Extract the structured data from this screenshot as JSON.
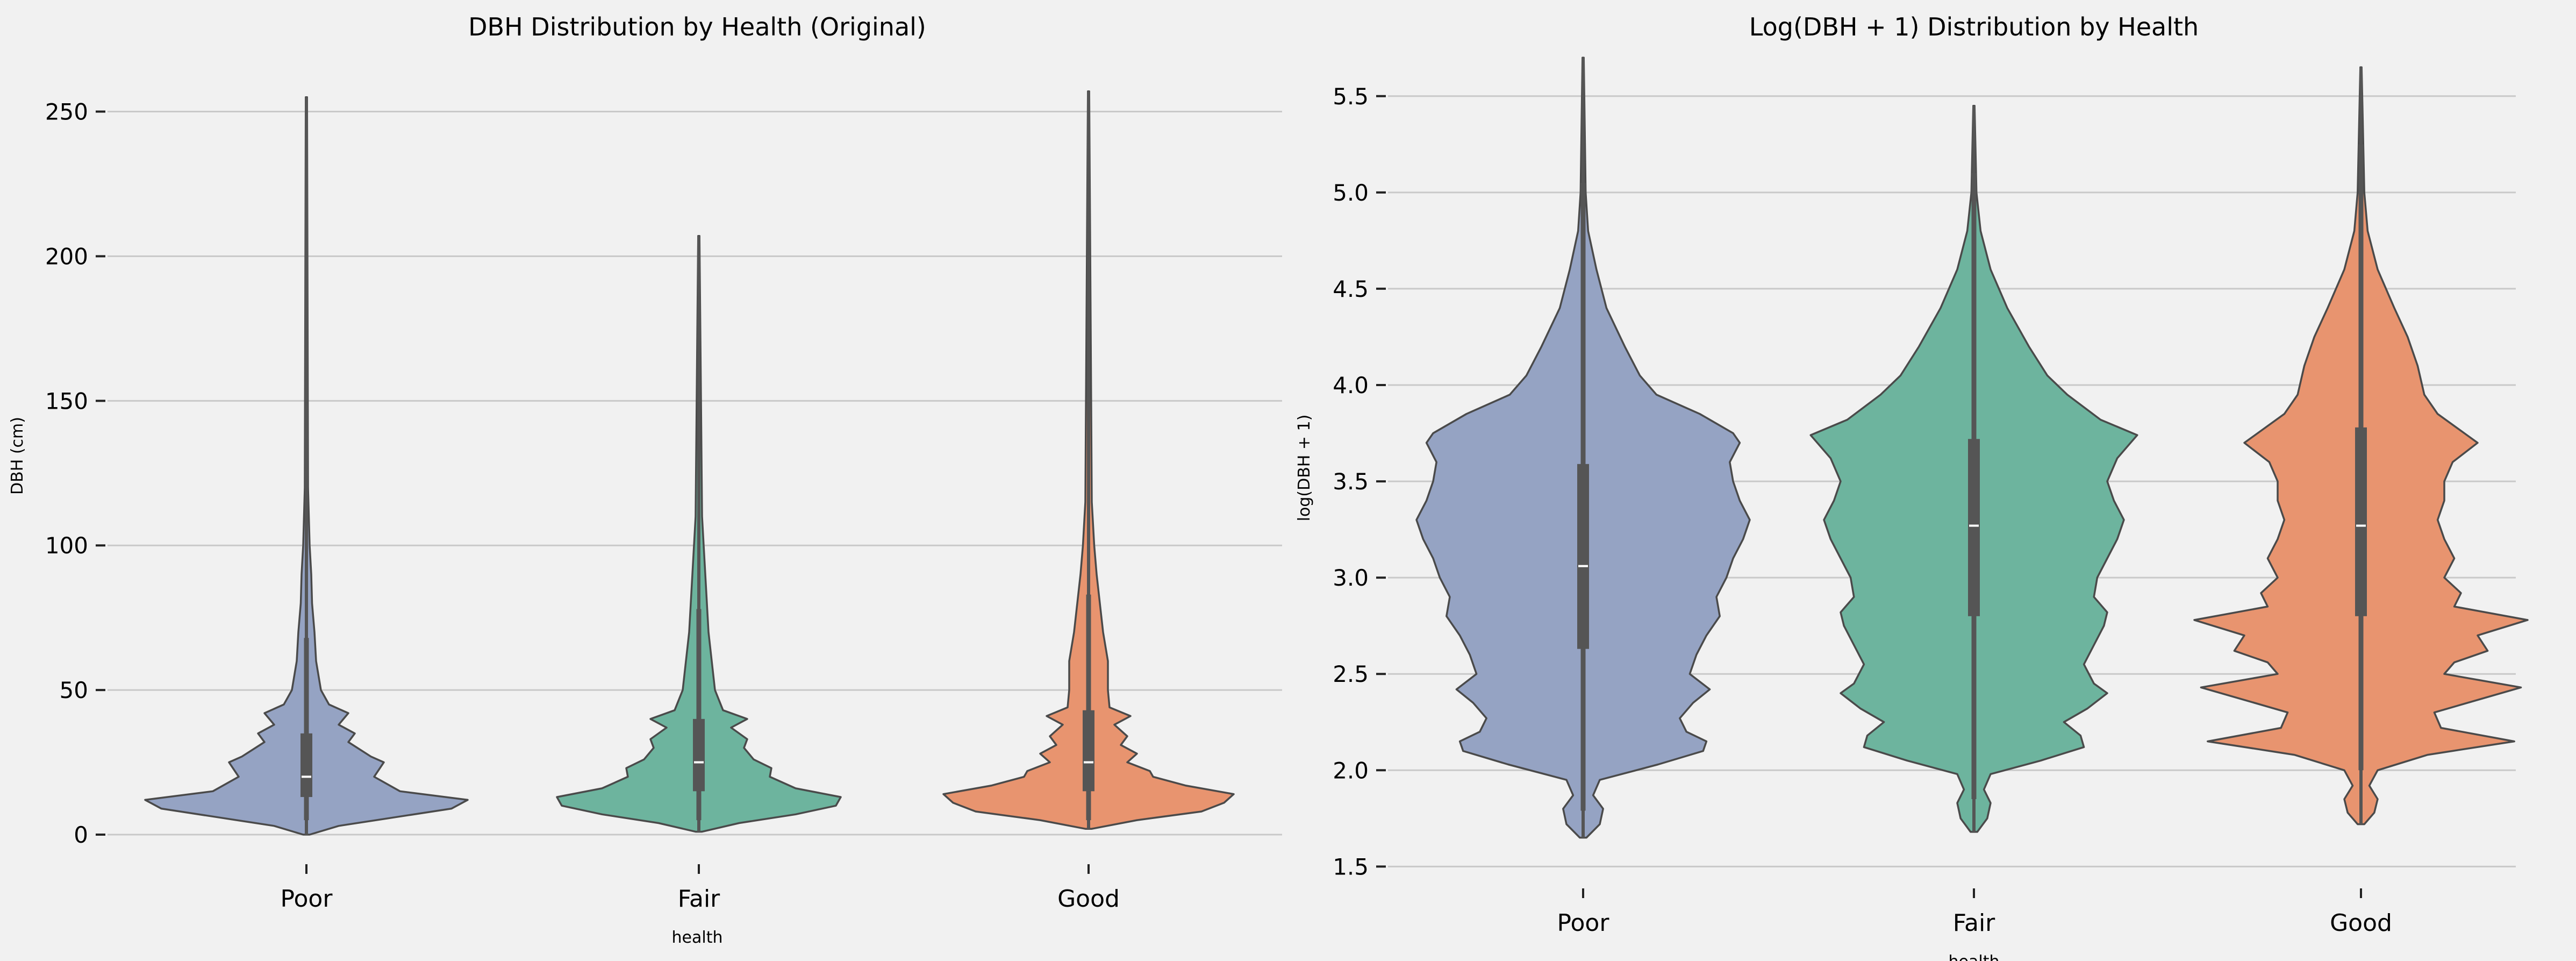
{
  "chart_data": [
    {
      "type": "violin",
      "title": "DBH Distribution by Health (Original)",
      "xlabel": "health",
      "ylabel": "DBH (cm)",
      "categories": [
        "Poor",
        "Fair",
        "Good"
      ],
      "ylim": [
        -8,
        270
      ],
      "yticks": [
        0,
        50,
        100,
        150,
        200,
        250
      ],
      "ytick_labels": [
        "0",
        "50",
        "100",
        "150",
        "200",
        "250"
      ],
      "grid": "y",
      "series": [
        {
          "category": "Poor",
          "color": "#95a3c3",
          "min": 0,
          "max": 255,
          "q1": 13,
          "median": 20,
          "q3": 35,
          "whisker_low": 5,
          "whisker_high": 68,
          "profile": [
            [
              0,
              0.02
            ],
            [
              3,
              0.2
            ],
            [
              6,
              0.55
            ],
            [
              9,
              0.9
            ],
            [
              12,
              1.0
            ],
            [
              15,
              0.58
            ],
            [
              20,
              0.42
            ],
            [
              25,
              0.48
            ],
            [
              27,
              0.4
            ],
            [
              32,
              0.26
            ],
            [
              35,
              0.3
            ],
            [
              38,
              0.2
            ],
            [
              42,
              0.26
            ],
            [
              45,
              0.14
            ],
            [
              50,
              0.09
            ],
            [
              60,
              0.06
            ],
            [
              70,
              0.05
            ],
            [
              80,
              0.035
            ],
            [
              90,
              0.03
            ],
            [
              100,
              0.02
            ],
            [
              120,
              0.01
            ],
            [
              255,
              0.004
            ]
          ]
        },
        {
          "category": "Fair",
          "color": "#6db49e",
          "min": 1,
          "max": 207,
          "q1": 15,
          "median": 25,
          "q3": 40,
          "whisker_low": 5,
          "whisker_high": 78,
          "profile": [
            [
              1,
              0.02
            ],
            [
              4,
              0.25
            ],
            [
              7,
              0.6
            ],
            [
              10,
              0.85
            ],
            [
              13,
              0.88
            ],
            [
              16,
              0.6
            ],
            [
              20,
              0.44
            ],
            [
              23,
              0.45
            ],
            [
              26,
              0.34
            ],
            [
              30,
              0.28
            ],
            [
              33,
              0.3
            ],
            [
              37,
              0.2
            ],
            [
              40,
              0.3
            ],
            [
              43,
              0.15
            ],
            [
              50,
              0.1
            ],
            [
              60,
              0.08
            ],
            [
              70,
              0.06
            ],
            [
              80,
              0.05
            ],
            [
              95,
              0.035
            ],
            [
              110,
              0.02
            ],
            [
              207,
              0.004
            ]
          ]
        },
        {
          "category": "Good",
          "color": "#e8946f",
          "min": 2,
          "max": 257,
          "q1": 15,
          "median": 25,
          "q3": 43,
          "whisker_low": 5,
          "whisker_high": 83,
          "profile": [
            [
              2,
              0.02
            ],
            [
              5,
              0.3
            ],
            [
              8,
              0.7
            ],
            [
              11,
              0.84
            ],
            [
              14,
              0.9
            ],
            [
              17,
              0.6
            ],
            [
              20,
              0.4
            ],
            [
              22,
              0.38
            ],
            [
              25,
              0.24
            ],
            [
              28,
              0.3
            ],
            [
              31,
              0.2
            ],
            [
              34,
              0.24
            ],
            [
              38,
              0.16
            ],
            [
              41,
              0.26
            ],
            [
              44,
              0.13
            ],
            [
              50,
              0.12
            ],
            [
              60,
              0.12
            ],
            [
              70,
              0.09
            ],
            [
              80,
              0.07
            ],
            [
              90,
              0.05
            ],
            [
              100,
              0.035
            ],
            [
              115,
              0.02
            ],
            [
              257,
              0.004
            ]
          ]
        }
      ]
    },
    {
      "type": "violin",
      "title": "Log(DBH + 1) Distribution by Health",
      "xlabel": "health",
      "ylabel": "log(DBH + 1)",
      "categories": [
        "Poor",
        "Fair",
        "Good"
      ],
      "ylim": [
        1.42,
        5.72
      ],
      "yticks": [
        1.5,
        2.0,
        2.5,
        3.0,
        3.5,
        4.0,
        4.5,
        5.0,
        5.5
      ],
      "ytick_labels": [
        "1.5",
        "2.0",
        "2.5",
        "3.0",
        "3.5",
        "4.0",
        "4.5",
        "5.0",
        "5.5"
      ],
      "grid": "y",
      "series": [
        {
          "category": "Poor",
          "color": "#95a3c3",
          "min": 1.65,
          "max": 5.7,
          "q1": 2.63,
          "median": 3.06,
          "q3": 3.59,
          "whisker_low": 1.79,
          "whisker_high": 5.05,
          "profile": [
            [
              1.65,
              0.02
            ],
            [
              1.72,
              0.1
            ],
            [
              1.8,
              0.12
            ],
            [
              1.87,
              0.06
            ],
            [
              1.95,
              0.1
            ],
            [
              2.03,
              0.45
            ],
            [
              2.1,
              0.72
            ],
            [
              2.15,
              0.74
            ],
            [
              2.2,
              0.62
            ],
            [
              2.27,
              0.58
            ],
            [
              2.35,
              0.66
            ],
            [
              2.42,
              0.76
            ],
            [
              2.5,
              0.64
            ],
            [
              2.6,
              0.68
            ],
            [
              2.7,
              0.74
            ],
            [
              2.8,
              0.82
            ],
            [
              2.9,
              0.8
            ],
            [
              3.0,
              0.86
            ],
            [
              3.1,
              0.9
            ],
            [
              3.2,
              0.96
            ],
            [
              3.3,
              1.0
            ],
            [
              3.4,
              0.94
            ],
            [
              3.5,
              0.9
            ],
            [
              3.6,
              0.88
            ],
            [
              3.7,
              0.94
            ],
            [
              3.75,
              0.9
            ],
            [
              3.85,
              0.7
            ],
            [
              3.95,
              0.44
            ],
            [
              4.05,
              0.34
            ],
            [
              4.2,
              0.25
            ],
            [
              4.4,
              0.14
            ],
            [
              4.6,
              0.08
            ],
            [
              4.8,
              0.03
            ],
            [
              5.0,
              0.015
            ],
            [
              5.7,
              0.004
            ]
          ]
        },
        {
          "category": "Fair",
          "color": "#6db49e",
          "min": 1.68,
          "max": 5.45,
          "q1": 2.8,
          "median": 3.27,
          "q3": 3.72,
          "whisker_low": 1.85,
          "whisker_high": 5.1,
          "profile": [
            [
              1.68,
              0.02
            ],
            [
              1.75,
              0.08
            ],
            [
              1.83,
              0.1
            ],
            [
              1.9,
              0.06
            ],
            [
              1.98,
              0.1
            ],
            [
              2.05,
              0.4
            ],
            [
              2.12,
              0.66
            ],
            [
              2.18,
              0.64
            ],
            [
              2.25,
              0.54
            ],
            [
              2.32,
              0.68
            ],
            [
              2.4,
              0.8
            ],
            [
              2.45,
              0.72
            ],
            [
              2.55,
              0.66
            ],
            [
              2.65,
              0.72
            ],
            [
              2.75,
              0.78
            ],
            [
              2.82,
              0.8
            ],
            [
              2.9,
              0.72
            ],
            [
              3.0,
              0.74
            ],
            [
              3.1,
              0.8
            ],
            [
              3.2,
              0.86
            ],
            [
              3.3,
              0.9
            ],
            [
              3.4,
              0.84
            ],
            [
              3.5,
              0.8
            ],
            [
              3.62,
              0.86
            ],
            [
              3.7,
              0.94
            ],
            [
              3.74,
              0.98
            ],
            [
              3.82,
              0.76
            ],
            [
              3.95,
              0.56
            ],
            [
              4.05,
              0.44
            ],
            [
              4.2,
              0.33
            ],
            [
              4.4,
              0.2
            ],
            [
              4.6,
              0.1
            ],
            [
              4.8,
              0.04
            ],
            [
              5.0,
              0.015
            ],
            [
              5.45,
              0.004
            ]
          ]
        },
        {
          "category": "Good",
          "color": "#e8946f",
          "min": 1.72,
          "max": 5.65,
          "q1": 2.8,
          "median": 3.27,
          "q3": 3.78,
          "whisker_low": 2.0,
          "whisker_high": 5.25,
          "profile": [
            [
              1.72,
              0.02
            ],
            [
              1.78,
              0.08
            ],
            [
              1.85,
              0.1
            ],
            [
              1.92,
              0.05
            ],
            [
              2.0,
              0.1
            ],
            [
              2.08,
              0.4
            ],
            [
              2.15,
              0.92
            ],
            [
              2.22,
              0.48
            ],
            [
              2.3,
              0.44
            ],
            [
              2.36,
              0.68
            ],
            [
              2.43,
              0.96
            ],
            [
              2.5,
              0.5
            ],
            [
              2.56,
              0.56
            ],
            [
              2.62,
              0.76
            ],
            [
              2.7,
              0.7
            ],
            [
              2.78,
              1.0
            ],
            [
              2.85,
              0.56
            ],
            [
              2.92,
              0.6
            ],
            [
              3.0,
              0.5
            ],
            [
              3.1,
              0.56
            ],
            [
              3.2,
              0.5
            ],
            [
              3.3,
              0.46
            ],
            [
              3.4,
              0.5
            ],
            [
              3.5,
              0.5
            ],
            [
              3.6,
              0.55
            ],
            [
              3.7,
              0.7
            ],
            [
              3.75,
              0.62
            ],
            [
              3.85,
              0.46
            ],
            [
              3.95,
              0.38
            ],
            [
              4.1,
              0.34
            ],
            [
              4.25,
              0.28
            ],
            [
              4.4,
              0.2
            ],
            [
              4.6,
              0.1
            ],
            [
              4.8,
              0.04
            ],
            [
              5.0,
              0.02
            ],
            [
              5.65,
              0.004
            ]
          ]
        }
      ]
    }
  ]
}
